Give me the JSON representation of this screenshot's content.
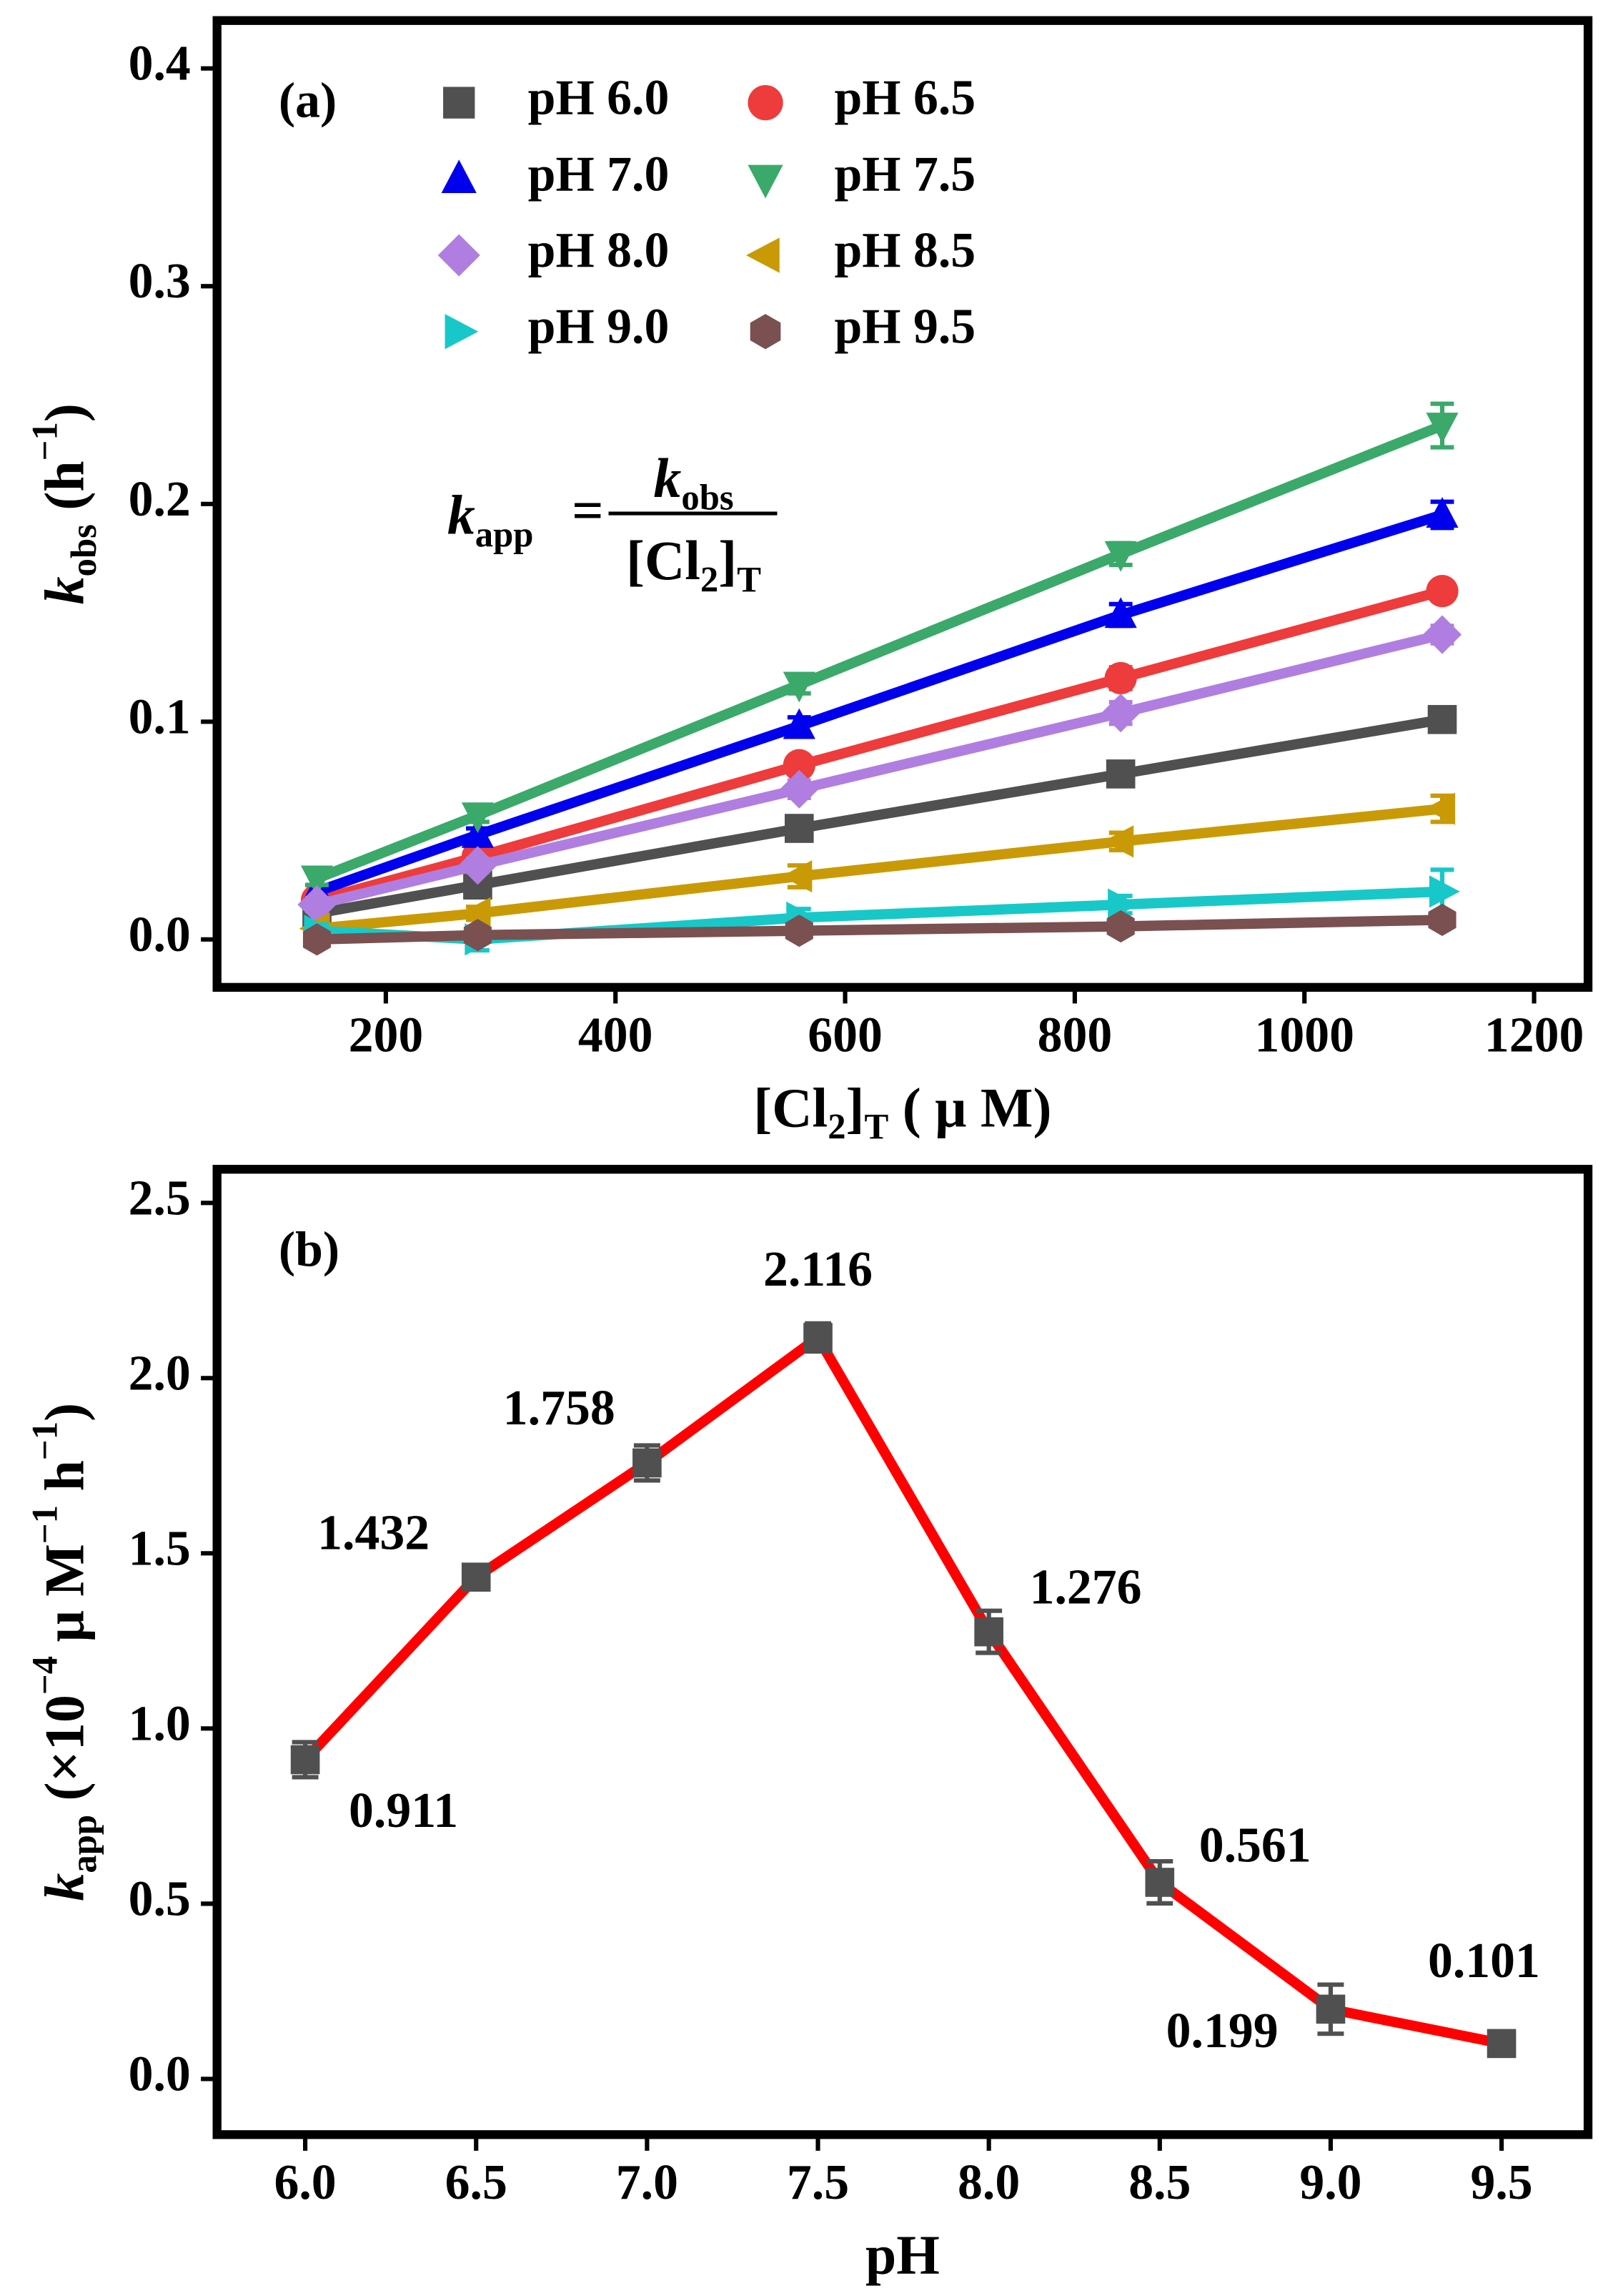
{
  "chart_data": [
    {
      "type": "line",
      "panel": "(a)",
      "xlabel": [
        {
          "text": "[Cl"
        },
        {
          "text": "2",
          "style": "sub"
        },
        {
          "text": "]"
        },
        {
          "text": "T",
          "style": "sub"
        },
        {
          "text": " ( μ M)"
        }
      ],
      "ylabel": [
        {
          "text": "k",
          "style": "italic"
        },
        {
          "text": "obs",
          "style": "sub"
        },
        {
          "text": " (h"
        },
        {
          "text": "−1",
          "style": "sup"
        },
        {
          "text": ")"
        }
      ],
      "formula": {
        "lhs": [
          {
            "text": "k",
            "style": "italic"
          },
          {
            "text": "app",
            "style": "sub"
          }
        ],
        "eq": "=",
        "num": [
          {
            "text": "k",
            "style": "italic"
          },
          {
            "text": "obs",
            "style": "sub"
          }
        ],
        "den": [
          {
            "text": "[Cl"
          },
          {
            "text": "2",
            "style": "sub"
          },
          {
            "text": "]"
          },
          {
            "text": "T",
            "style": "sub"
          }
        ]
      },
      "x": [
        140,
        280,
        560,
        840,
        1120
      ],
      "xlim": [
        53,
        1247
      ],
      "xticks": [
        200,
        400,
        600,
        800,
        1000,
        1200
      ],
      "ylim": [
        -0.022,
        0.422
      ],
      "yticks": [
        {
          "value": 0,
          "label": "0.0"
        },
        0.1,
        0.2,
        0.3,
        0.4
      ],
      "series": [
        {
          "name": "pH 6.0",
          "color": "#505050",
          "marker": "square",
          "values": [
            0.012,
            0.025,
            0.051,
            0.076,
            0.101
          ],
          "errors": [
            0.003,
            0.003,
            0.004,
            0.004,
            0.005
          ]
        },
        {
          "name": "pH 6.5",
          "color": "#ee3b3b",
          "marker": "circle",
          "values": [
            0.018,
            0.038,
            0.08,
            0.12,
            0.16
          ],
          "errors": [
            0.003,
            0.003,
            0.004,
            0.005,
            0.004
          ]
        },
        {
          "name": "pH 7.0",
          "color": "#0000ee",
          "marker": "triangle-up",
          "values": [
            0.022,
            0.048,
            0.098,
            0.149,
            0.195
          ],
          "errors": [
            0.003,
            0.003,
            0.004,
            0.005,
            0.006
          ]
        },
        {
          "name": "pH 7.5",
          "color": "#3aa96a",
          "marker": "triangle-down",
          "values": [
            0.028,
            0.057,
            0.117,
            0.177,
            0.236
          ],
          "errors": [
            0.003,
            0.003,
            0.004,
            0.005,
            0.01
          ]
        },
        {
          "name": "pH 8.0",
          "color": "#b07ee0",
          "marker": "diamond",
          "values": [
            0.016,
            0.034,
            0.069,
            0.104,
            0.14
          ],
          "errors": [
            0.003,
            0.003,
            0.004,
            0.005,
            0.004
          ]
        },
        {
          "name": "pH 8.5",
          "color": "#c99a06",
          "marker": "triangle-left",
          "values": [
            0.005,
            0.012,
            0.029,
            0.045,
            0.06
          ],
          "errors": [
            0.003,
            0.003,
            0.005,
            0.004,
            0.006
          ]
        },
        {
          "name": "pH 9.0",
          "color": "#18c8c8",
          "marker": "triangle-right",
          "values": [
            0.004,
            0.0,
            0.01,
            0.016,
            0.022
          ],
          "errors": [
            0.003,
            0.005,
            0.004,
            0.004,
            0.01
          ]
        },
        {
          "name": "pH 9.5",
          "color": "#7a5050",
          "marker": "hexagon",
          "values": [
            0.0,
            0.002,
            0.004,
            0.006,
            0.009
          ],
          "errors": [
            0.002,
            0.002,
            0.003,
            0.003,
            0.003
          ]
        }
      ]
    },
    {
      "type": "line",
      "panel": "(b)",
      "xlabel": [
        {
          "text": "pH"
        }
      ],
      "ylabel": [
        {
          "text": "k",
          "style": "italic"
        },
        {
          "text": "app",
          "style": "sub"
        },
        {
          "text": " (×10"
        },
        {
          "text": "−4",
          "style": "sup"
        },
        {
          "text": " μ M"
        },
        {
          "text": "−1",
          "style": "sup"
        },
        {
          "text": " h"
        },
        {
          "text": "−1",
          "style": "sup"
        },
        {
          "text": ")"
        }
      ],
      "x": [
        6.0,
        6.5,
        7.0,
        7.5,
        8.0,
        8.5,
        9.0,
        9.5
      ],
      "xlim": [
        5.742,
        9.753
      ],
      "xticks": [
        {
          "value": 6,
          "label": "6.0"
        },
        6.5,
        {
          "value": 7,
          "label": "7.0"
        },
        7.5,
        {
          "value": 8,
          "label": "8.0"
        },
        8.5,
        {
          "value": 9,
          "label": "9.0"
        },
        9.5
      ],
      "ylim": [
        -0.159,
        2.596
      ],
      "yticks": [
        {
          "value": 0,
          "label": "0.0"
        },
        0.5,
        {
          "value": 1,
          "label": "1.0"
        },
        1.5,
        {
          "value": 2,
          "label": "2.0"
        },
        2.5
      ],
      "line_color": "#ff0000",
      "marker_color": "#505050",
      "values": [
        0.911,
        1.432,
        1.758,
        2.116,
        1.276,
        0.561,
        0.199,
        0.101
      ],
      "errors": [
        0.05,
        0.02,
        0.05,
        0.04,
        0.06,
        0.06,
        0.07,
        0.02
      ]
    }
  ]
}
